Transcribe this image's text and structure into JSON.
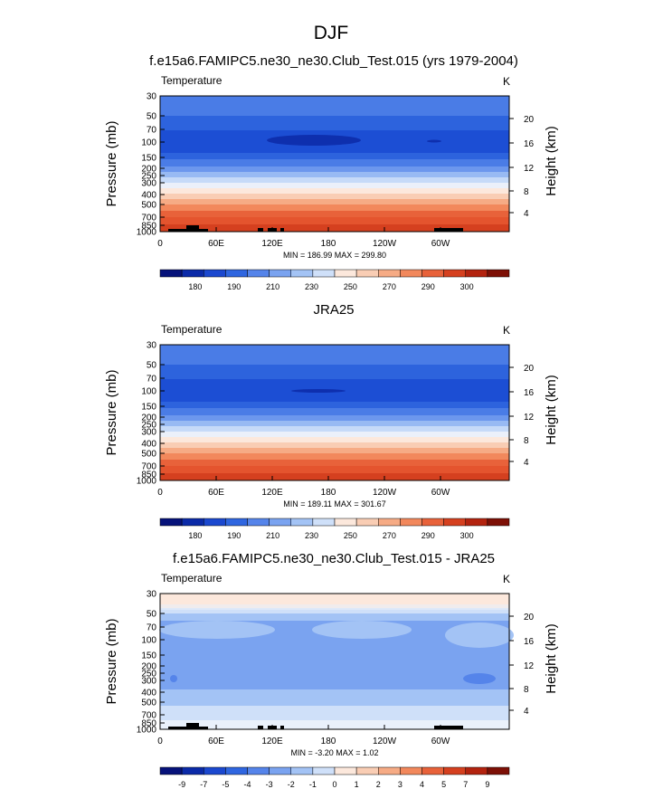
{
  "figure": {
    "title": "DJF"
  },
  "chart_data": [
    {
      "type": "heatmap",
      "title": "f.e15a6.FAMIPC5.ne30_ne30.Club_Test.015 (yrs 1979-2004)",
      "left_label": "Temperature",
      "right_label": "K",
      "ylabel": "Pressure (mb)",
      "ylabel_right": "Height (km)",
      "x_ticks": [
        "0",
        "60E",
        "120E",
        "180",
        "120W",
        "60W"
      ],
      "y_ticks": [
        "30",
        "50",
        "70",
        "100",
        "150",
        "200",
        "250",
        "300",
        "400",
        "500",
        "700",
        "850",
        "1000"
      ],
      "height_ticks": [
        "20",
        "16",
        "12",
        "8",
        "4"
      ],
      "stats": "MIN = 186.99  MAX = 299.80",
      "min": 186.99,
      "max": 299.8,
      "colorbar_labels": [
        "180",
        "190",
        "210",
        "230",
        "250",
        "270",
        "290",
        "300"
      ],
      "colorbar_colors": [
        "#06127a",
        "#0b2aa8",
        "#1b48cf",
        "#2f66e0",
        "#5584ea",
        "#7aa3f0",
        "#a3c3f5",
        "#cfe0f9",
        "#fce8dc",
        "#f9cdb4",
        "#f6ab85",
        "#f2885c",
        "#e8623a",
        "#d5401f",
        "#b3230f",
        "#7d1006"
      ]
    },
    {
      "type": "heatmap",
      "title": "JRA25",
      "left_label": "Temperature",
      "right_label": "K",
      "ylabel": "Pressure (mb)",
      "ylabel_right": "Height (km)",
      "x_ticks": [
        "0",
        "60E",
        "120E",
        "180",
        "120W",
        "60W"
      ],
      "y_ticks": [
        "30",
        "50",
        "70",
        "100",
        "150",
        "200",
        "250",
        "300",
        "400",
        "500",
        "700",
        "850",
        "1000"
      ],
      "height_ticks": [
        "20",
        "16",
        "12",
        "8",
        "4"
      ],
      "stats": "MIN = 189.11  MAX = 301.67",
      "min": 189.11,
      "max": 301.67,
      "colorbar_labels": [
        "180",
        "190",
        "210",
        "230",
        "250",
        "270",
        "290",
        "300"
      ],
      "colorbar_colors": [
        "#06127a",
        "#0b2aa8",
        "#1b48cf",
        "#2f66e0",
        "#5584ea",
        "#7aa3f0",
        "#a3c3f5",
        "#cfe0f9",
        "#fce8dc",
        "#f9cdb4",
        "#f6ab85",
        "#f2885c",
        "#e8623a",
        "#d5401f",
        "#b3230f",
        "#7d1006"
      ]
    },
    {
      "type": "heatmap",
      "title": "f.e15a6.FAMIPC5.ne30_ne30.Club_Test.015 - JRA25",
      "left_label": "Temperature",
      "right_label": "K",
      "ylabel": "Pressure (mb)",
      "ylabel_right": "Height (km)",
      "x_ticks": [
        "0",
        "60E",
        "120E",
        "180",
        "120W",
        "60W"
      ],
      "y_ticks": [
        "30",
        "50",
        "70",
        "100",
        "150",
        "200",
        "250",
        "300",
        "400",
        "500",
        "700",
        "850",
        "1000"
      ],
      "height_ticks": [
        "20",
        "16",
        "12",
        "8",
        "4"
      ],
      "stats": "MIN = -3.20  MAX =  1.02",
      "min": -3.2,
      "max": 1.02,
      "colorbar_labels": [
        "-9",
        "-7",
        "-5",
        "-4",
        "-3",
        "-2",
        "-1",
        "0",
        "1",
        "2",
        "3",
        "4",
        "5",
        "7",
        "9"
      ],
      "colorbar_colors": [
        "#06127a",
        "#0b2aa8",
        "#1b48cf",
        "#2f66e0",
        "#5584ea",
        "#7aa3f0",
        "#a3c3f5",
        "#cfe0f9",
        "#fce8dc",
        "#f9cdb4",
        "#f6ab85",
        "#f2885c",
        "#e8623a",
        "#d5401f",
        "#b3230f",
        "#7d1006"
      ]
    }
  ]
}
